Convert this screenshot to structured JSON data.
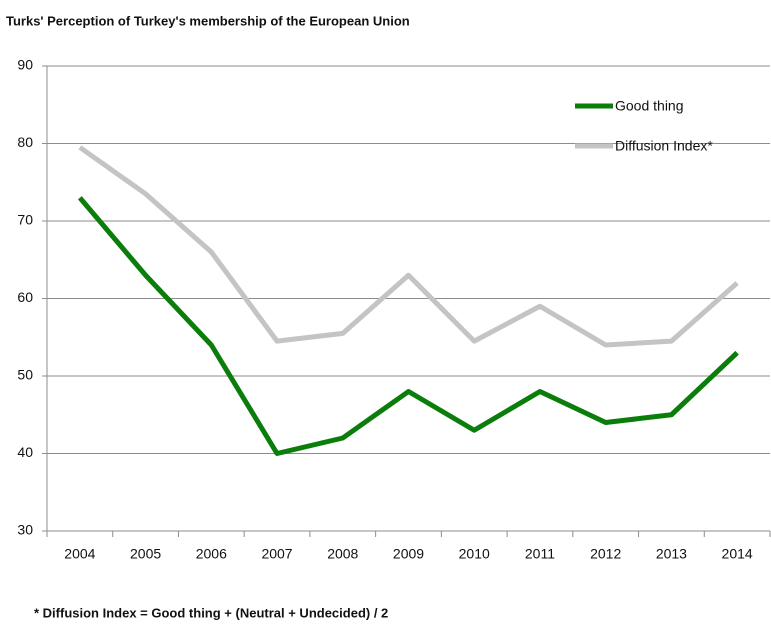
{
  "chart_data": {
    "type": "line",
    "title": "Turks' Perception of Turkey's membership of the European Union",
    "footnote": "* Diffusion Index = Good thing + (Neutral + Undecided) / 2",
    "categories": [
      "2004",
      "2005",
      "2006",
      "2007",
      "2008",
      "2009",
      "2010",
      "2011",
      "2012",
      "2013",
      "2014"
    ],
    "series": [
      {
        "name": "Good thing",
        "color": "#0a7d0a",
        "values": [
          73,
          63,
          54,
          40,
          42,
          48,
          43,
          48,
          44,
          45,
          53
        ]
      },
      {
        "name": "Diffusion Index*",
        "color": "#c4c4c4",
        "values": [
          79.5,
          73.5,
          66,
          54.5,
          55.5,
          63,
          54.5,
          59,
          54,
          54.5,
          62
        ]
      }
    ],
    "ylim": [
      30,
      90
    ],
    "yticks": [
      30,
      40,
      50,
      60,
      70,
      80,
      90
    ],
    "grid": true,
    "legend": "upper right"
  }
}
